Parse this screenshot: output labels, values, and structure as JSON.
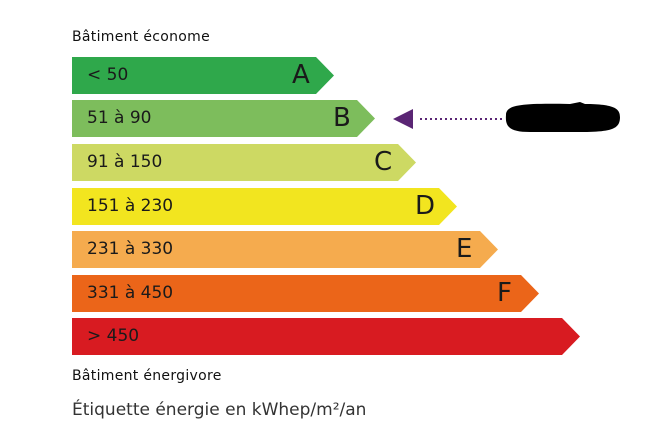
{
  "header_top": "Bâtiment économe",
  "header_bottom": "Bâtiment énergivore",
  "footer": "Étiquette énergie en kWhep/m²/an",
  "classes": [
    {
      "range": "< 50",
      "letter": "A",
      "color": "#2fa84b"
    },
    {
      "range": "51 à 90",
      "letter": "B",
      "color": "#7dbd5c"
    },
    {
      "range": "91 à 150",
      "letter": "C",
      "color": "#cdd963"
    },
    {
      "range": "151 à 230",
      "letter": "D",
      "color": "#f2e51f"
    },
    {
      "range": "231 à 330",
      "letter": "E",
      "color": "#f5ab4e"
    },
    {
      "range": "331 à 450",
      "letter": "F",
      "color": "#eb6519"
    },
    {
      "range": "> 450",
      "letter": "",
      "color": "#d81b21"
    }
  ],
  "indicator": {
    "class": "B",
    "color": "#5a2574",
    "label_redacted": true
  }
}
